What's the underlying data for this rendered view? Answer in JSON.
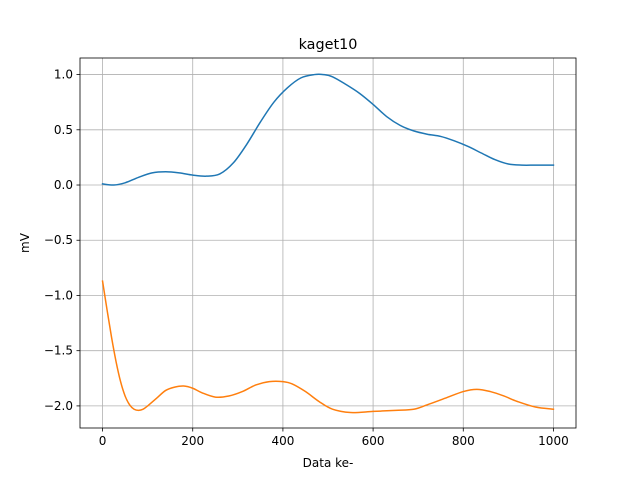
{
  "chart_data": {
    "type": "line",
    "title": "kaget10",
    "xlabel": "Data ke-",
    "ylabel": "mV",
    "xlim": [
      -50,
      1050
    ],
    "ylim": [
      -2.2,
      1.15
    ],
    "grid": true,
    "x_ticks": [
      0,
      200,
      400,
      600,
      800,
      1000
    ],
    "x_tick_labels": [
      "0",
      "200",
      "400",
      "600",
      "800",
      "1000"
    ],
    "y_ticks": [
      1.0,
      0.5,
      0.0,
      -0.5,
      -1.0,
      -1.5,
      -2.0
    ],
    "y_tick_labels": [
      "1.0",
      "0.5",
      "0.0",
      "−0.5",
      "−1.0",
      "−1.5",
      "−2.0"
    ],
    "series": [
      {
        "color": "#1f77b4",
        "x": [
          0,
          25,
          50,
          80,
          110,
          140,
          170,
          200,
          230,
          260,
          290,
          320,
          350,
          380,
          410,
          440,
          470,
          490,
          510,
          540,
          570,
          600,
          630,
          660,
          690,
          720,
          750,
          780,
          810,
          840,
          870,
          900,
          930,
          960,
          1000
        ],
        "y": [
          0.01,
          0.0,
          0.02,
          0.07,
          0.11,
          0.12,
          0.11,
          0.09,
          0.08,
          0.1,
          0.2,
          0.37,
          0.57,
          0.75,
          0.88,
          0.97,
          1.0,
          1.0,
          0.98,
          0.91,
          0.83,
          0.73,
          0.62,
          0.54,
          0.49,
          0.46,
          0.44,
          0.4,
          0.35,
          0.29,
          0.23,
          0.19,
          0.18,
          0.18,
          0.18
        ]
      },
      {
        "color": "#ff7f0e",
        "x": [
          0,
          10,
          20,
          30,
          40,
          50,
          60,
          70,
          80,
          90,
          100,
          120,
          140,
          160,
          180,
          200,
          220,
          250,
          280,
          310,
          340,
          370,
          400,
          420,
          450,
          480,
          510,
          550,
          600,
          650,
          690,
          720,
          760,
          800,
          830,
          860,
          890,
          920,
          960,
          1000
        ],
        "y": [
          -0.87,
          -1.13,
          -1.38,
          -1.6,
          -1.78,
          -1.91,
          -1.99,
          -2.03,
          -2.04,
          -2.03,
          -2.0,
          -1.93,
          -1.86,
          -1.83,
          -1.82,
          -1.84,
          -1.88,
          -1.92,
          -1.91,
          -1.87,
          -1.81,
          -1.78,
          -1.78,
          -1.8,
          -1.87,
          -1.96,
          -2.03,
          -2.06,
          -2.05,
          -2.04,
          -2.03,
          -1.99,
          -1.93,
          -1.87,
          -1.85,
          -1.87,
          -1.91,
          -1.96,
          -2.01,
          -2.03
        ]
      }
    ]
  }
}
